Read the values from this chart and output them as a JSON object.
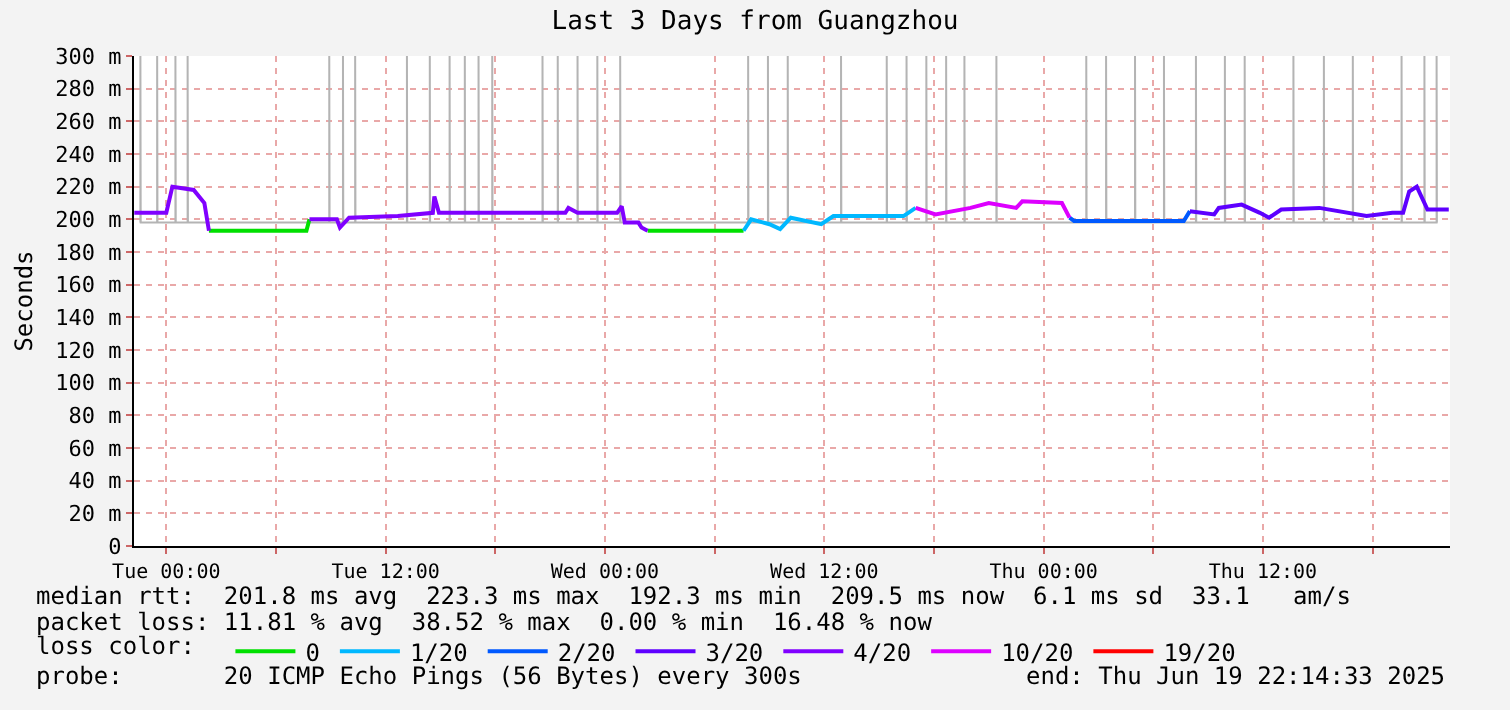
{
  "chart_data": {
    "type": "line",
    "title": "Last 3 Days from Guangzhou",
    "ylabel": "Seconds",
    "legend_title": "loss color:",
    "xlim": [
      "2025-06-16T22:14",
      "2025-06-19T22:14"
    ],
    "xticks": [
      {
        "value": "2025-06-17T00:00",
        "label": "Tue 00:00"
      },
      {
        "value": "2025-06-17T06:00",
        "label": null
      },
      {
        "value": "2025-06-17T12:00",
        "label": "Tue 12:00"
      },
      {
        "value": "2025-06-17T18:00",
        "label": null
      },
      {
        "value": "2025-06-18T00:00",
        "label": "Wed 00:00"
      },
      {
        "value": "2025-06-18T06:00",
        "label": null
      },
      {
        "value": "2025-06-18T12:00",
        "label": "Wed 12:00"
      },
      {
        "value": "2025-06-18T18:00",
        "label": null
      },
      {
        "value": "2025-06-19T00:00",
        "label": "Thu 00:00"
      },
      {
        "value": "2025-06-19T06:00",
        "label": null
      },
      {
        "value": "2025-06-19T12:00",
        "label": "Thu 12:00"
      },
      {
        "value": "2025-06-19T18:00",
        "label": null
      }
    ],
    "ylim": [
      0,
      300
    ],
    "yticks": [
      0,
      {
        "value": 20,
        "label": "20 m"
      },
      {
        "value": 40,
        "label": "40 m"
      },
      {
        "value": 60,
        "label": "60 m"
      },
      {
        "value": 80,
        "label": "80 m"
      },
      {
        "value": 100,
        "label": "100 m"
      },
      {
        "value": 120,
        "label": "120 m"
      },
      {
        "value": 140,
        "label": "140 m"
      },
      {
        "value": 160,
        "label": "160 m"
      },
      {
        "value": 180,
        "label": "180 m"
      },
      {
        "value": 200,
        "label": "200 m"
      },
      {
        "value": 220,
        "label": "220 m"
      },
      {
        "value": 240,
        "label": "240 m"
      },
      {
        "value": 260,
        "label": "260 m"
      },
      {
        "value": 280,
        "label": "280 m"
      },
      {
        "value": 300,
        "label": "300 m"
      }
    ],
    "grid": true,
    "legend": "bottom",
    "marker": "none",
    "series": [
      {
        "color": "#b4b4b4",
        "x": [
          "2025-06-16T22:35",
          "2025-06-16T22:35",
          "2025-06-16T22:36",
          "2025-06-16T23:30",
          "2025-06-16T23:30",
          "2025-06-16T23:31",
          "2025-06-17T00:30",
          "2025-06-17T00:30",
          "2025-06-17T00:31",
          "2025-06-17T01:10",
          "2025-06-17T01:10",
          "2025-06-17T01:11",
          "2025-06-17T08:55",
          "2025-06-17T08:55",
          "2025-06-17T08:56",
          "2025-06-17T09:40",
          "2025-06-17T09:40",
          "2025-06-17T09:41",
          "2025-06-17T10:20",
          "2025-06-17T10:20",
          "2025-06-17T10:21",
          "2025-06-17T13:10",
          "2025-06-17T13:10",
          "2025-06-17T13:11",
          "2025-06-17T14:25",
          "2025-06-17T14:25",
          "2025-06-17T14:26",
          "2025-06-17T15:30",
          "2025-06-17T15:30",
          "2025-06-17T15:31",
          "2025-06-17T16:20",
          "2025-06-17T16:20",
          "2025-06-17T16:21",
          "2025-06-17T17:05",
          "2025-06-17T17:05",
          "2025-06-17T17:06",
          "2025-06-17T17:50",
          "2025-06-17T17:50",
          "2025-06-17T17:51",
          "2025-06-17T20:35",
          "2025-06-17T20:35",
          "2025-06-17T20:36",
          "2025-06-17T21:25",
          "2025-06-17T21:25",
          "2025-06-17T21:26",
          "2025-06-17T22:30",
          "2025-06-17T22:30",
          "2025-06-17T22:31",
          "2025-06-17T23:35",
          "2025-06-17T23:35",
          "2025-06-17T23:36",
          "2025-06-18T00:50",
          "2025-06-18T00:50",
          "2025-06-18T00:51",
          "2025-06-18T07:50",
          "2025-06-18T07:50",
          "2025-06-18T07:51",
          "2025-06-18T08:55",
          "2025-06-18T08:55",
          "2025-06-18T08:56",
          "2025-06-18T10:00",
          "2025-06-18T10:00",
          "2025-06-18T10:01",
          "2025-06-18T12:55",
          "2025-06-18T12:55",
          "2025-06-18T12:56",
          "2025-06-18T15:25",
          "2025-06-18T15:25",
          "2025-06-18T15:26",
          "2025-06-18T16:30",
          "2025-06-18T16:30",
          "2025-06-18T16:31",
          "2025-06-18T17:35",
          "2025-06-18T17:35",
          "2025-06-18T17:36",
          "2025-06-18T18:40",
          "2025-06-18T18:40",
          "2025-06-18T18:41",
          "2025-06-18T19:40",
          "2025-06-18T19:40",
          "2025-06-18T19:41",
          "2025-06-18T21:25",
          "2025-06-18T21:25",
          "2025-06-18T21:26",
          "2025-06-19T02:20",
          "2025-06-19T02:20",
          "2025-06-19T02:21",
          "2025-06-19T03:25",
          "2025-06-19T03:25",
          "2025-06-19T03:26",
          "2025-06-19T05:00",
          "2025-06-19T05:00",
          "2025-06-19T05:01",
          "2025-06-19T06:35",
          "2025-06-19T06:35",
          "2025-06-19T06:36",
          "2025-06-19T08:20",
          "2025-06-19T08:20",
          "2025-06-19T08:21",
          "2025-06-19T09:55",
          "2025-06-19T09:55",
          "2025-06-19T09:56",
          "2025-06-19T11:00",
          "2025-06-19T11:00",
          "2025-06-19T11:01",
          "2025-06-19T13:40",
          "2025-06-19T13:40",
          "2025-06-19T13:41",
          "2025-06-19T15:20",
          "2025-06-19T15:20",
          "2025-06-19T15:21",
          "2025-06-19T16:55",
          "2025-06-19T16:55",
          "2025-06-19T16:56",
          "2025-06-19T19:35",
          "2025-06-19T19:35",
          "2025-06-19T19:36",
          "2025-06-19T20:50",
          "2025-06-19T20:50",
          "2025-06-19T20:51",
          "2025-06-19T21:30",
          "2025-06-19T21:30",
          "2025-06-19T21:31"
        ],
        "values": [
          198,
          300,
          198,
          198,
          300,
          198,
          198,
          300,
          198,
          198,
          300,
          198,
          198,
          300,
          198,
          198,
          300,
          198,
          198,
          300,
          198,
          198,
          300,
          198,
          198,
          300,
          198,
          198,
          300,
          198,
          198,
          300,
          198,
          198,
          300,
          198,
          198,
          300,
          198,
          198,
          300,
          198,
          198,
          300,
          198,
          198,
          300,
          198,
          198,
          300,
          198,
          198,
          300,
          198,
          198,
          300,
          198,
          198,
          300,
          198,
          198,
          300,
          198,
          198,
          300,
          198,
          198,
          300,
          198,
          198,
          300,
          198,
          198,
          300,
          198,
          198,
          300,
          198,
          198,
          300,
          198,
          198,
          300,
          198,
          198,
          300,
          198,
          198,
          300,
          198,
          198,
          300,
          198,
          198,
          300,
          198,
          198,
          300,
          198,
          198,
          300,
          198,
          198,
          300,
          198,
          198,
          300,
          198,
          198,
          300,
          198,
          198,
          300,
          198,
          198,
          300,
          198,
          198,
          300,
          198,
          198,
          300,
          198
        ]
      },
      {
        "name": "0",
        "color": "#00e000",
        "x": [
          "2025-06-17T02:20",
          "2025-06-17T07:40",
          "2025-06-17T07:50",
          "2025-06-17T12:00",
          "2025-06-18T02:20",
          "2025-06-18T07:35"
        ],
        "values": [
          193,
          193,
          200,
          null,
          193,
          193
        ]
      },
      {
        "name": "1/20",
        "color": "#00b8ff",
        "x": [
          "2025-06-18T07:35",
          "2025-06-18T08:00",
          "2025-06-18T09:00",
          "2025-06-18T09:35",
          "2025-06-18T10:10",
          "2025-06-18T11:50",
          "2025-06-18T12:30",
          "2025-06-18T16:20",
          "2025-06-18T17:00"
        ],
        "values": [
          193,
          200,
          197,
          194,
          201,
          197,
          202,
          202,
          207
        ]
      },
      {
        "name": "2/20",
        "color": "#0059ff",
        "x": [
          "2025-06-19T01:25",
          "2025-06-19T01:40",
          "2025-06-19T07:40",
          "2025-06-19T08:00"
        ],
        "values": [
          201,
          199,
          199,
          205
        ]
      },
      {
        "name": "3/20",
        "color": "#5e00ff",
        "x": [
          "2025-06-19T08:00",
          "2025-06-19T09:20",
          "2025-06-19T09:35",
          "2025-06-19T10:50",
          "2025-06-19T11:50",
          "2025-06-19T12:20",
          "2025-06-19T13:00",
          "2025-06-19T15:05",
          "2025-06-19T17:40",
          "2025-06-19T19:05",
          "2025-06-19T19:40",
          "2025-06-19T20:00",
          "2025-06-19T20:25",
          "2025-06-19T21:00",
          "2025-06-19T21:35",
          "2025-06-19T22:10"
        ],
        "values": [
          205,
          203,
          207,
          209,
          204,
          201,
          206,
          207,
          202,
          204,
          204,
          217,
          220,
          206,
          206,
          206
        ]
      },
      {
        "name": "4/20",
        "color": "#8000ff",
        "x": [
          "2025-06-16T22:15",
          "2025-06-17T00:00",
          "2025-06-17T00:20",
          "2025-06-17T01:30",
          "2025-06-17T02:05",
          "2025-06-17T02:20",
          "2025-06-17T05:00",
          "2025-06-17T07:50",
          "2025-06-17T09:20",
          "2025-06-17T09:30",
          "2025-06-17T10:00",
          "2025-06-17T12:40",
          "2025-06-17T14:35",
          "2025-06-17T14:40",
          "2025-06-17T14:55",
          "2025-06-17T21:50",
          "2025-06-17T22:00",
          "2025-06-17T22:30",
          "2025-06-18T00:40",
          "2025-06-18T00:55",
          "2025-06-18T01:05",
          "2025-06-18T01:50",
          "2025-06-18T02:00",
          "2025-06-18T02:20"
        ],
        "values": [
          204,
          204,
          220,
          218,
          210,
          193,
          null,
          200,
          200,
          195,
          201,
          202,
          204,
          214,
          204,
          204,
          207,
          204,
          204,
          208,
          198,
          198,
          195,
          193
        ]
      },
      {
        "name": "10/20",
        "color": "#dd00ff",
        "x": [
          "2025-06-18T17:00",
          "2025-06-18T18:05",
          "2025-06-18T20:00",
          "2025-06-18T21:00",
          "2025-06-18T22:30",
          "2025-06-18T22:50",
          "2025-06-19T01:00",
          "2025-06-19T01:25"
        ],
        "values": [
          207,
          203,
          207,
          210,
          207,
          211,
          210,
          201
        ]
      },
      {
        "name": "19/20",
        "color": "#ff0000"
      }
    ],
    "annotations": [
      "median rtt:  201.8 ms avg  223.3 ms max  192.3 ms min  209.5 ms now  6.1 ms sd  33.1   am/s",
      "packet loss: 11.81 % avg  38.52 % max  0.00 % min  16.48 % now",
      "probe:       20 ICMP Echo Pings (56 Bytes) every 300s",
      "end: Thu Jun 19 22:14:33 2025"
    ]
  }
}
